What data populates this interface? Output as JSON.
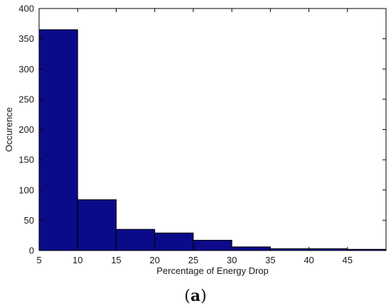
{
  "chart_data": {
    "type": "bar",
    "histogram": true,
    "bins": [
      {
        "from": 5,
        "to": 10,
        "value": 365
      },
      {
        "from": 10,
        "to": 15,
        "value": 84
      },
      {
        "from": 15,
        "to": 20,
        "value": 35
      },
      {
        "from": 20,
        "to": 25,
        "value": 29
      },
      {
        "from": 25,
        "to": 30,
        "value": 17
      },
      {
        "from": 30,
        "to": 35,
        "value": 6
      },
      {
        "from": 35,
        "to": 40,
        "value": 3
      },
      {
        "from": 40,
        "to": 45,
        "value": 3
      },
      {
        "from": 45,
        "to": 50,
        "value": 2
      }
    ],
    "xlabel": "Percentage of Energy Drop",
    "ylabel": "Occurence",
    "xlim": [
      5,
      50
    ],
    "ylim": [
      0,
      400
    ],
    "xticks": [
      5,
      10,
      15,
      20,
      25,
      30,
      35,
      40,
      45
    ],
    "yticks": [
      0,
      50,
      100,
      150,
      200,
      250,
      300,
      350,
      400
    ],
    "grid": false,
    "bar_color": "#0b0b8a",
    "edge_color": "#000000"
  },
  "caption": {
    "open": "(",
    "letter": "a",
    "close": ")"
  }
}
